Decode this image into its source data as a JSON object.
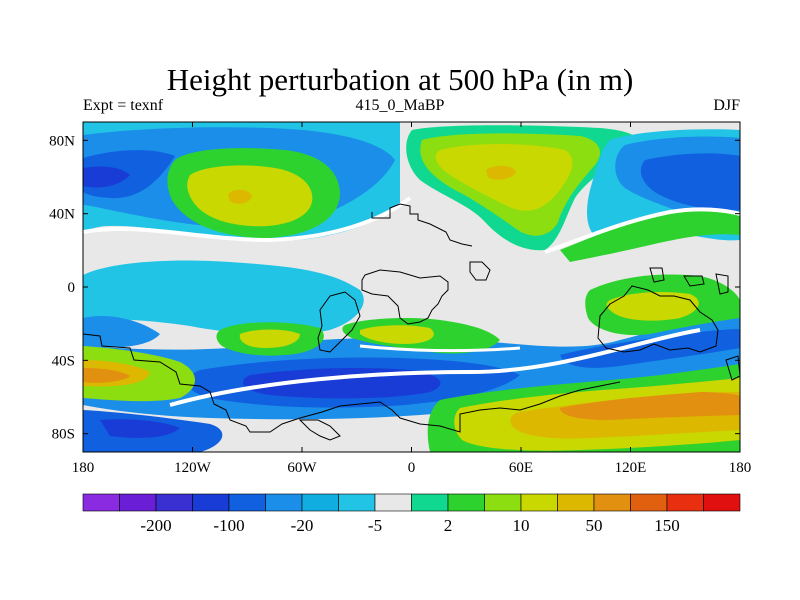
{
  "title": "Height perturbation at 500 hPa (in m)",
  "subtitle_left": "Expt = texnf",
  "subtitle_center": "415_0_MaBP",
  "subtitle_right": "DJF",
  "y_ticks": [
    {
      "lat": 80,
      "label": "80N"
    },
    {
      "lat": 40,
      "label": "40N"
    },
    {
      "lat": 0,
      "label": "0"
    },
    {
      "lat": -40,
      "label": "40S"
    },
    {
      "lat": -80,
      "label": "80S"
    }
  ],
  "x_ticks": [
    {
      "lon": -180,
      "label": "180"
    },
    {
      "lon": -120,
      "label": "120W"
    },
    {
      "lon": -60,
      "label": "60W"
    },
    {
      "lon": 0,
      "label": "0"
    },
    {
      "lon": 60,
      "label": "60E"
    },
    {
      "lon": 120,
      "label": "120E"
    },
    {
      "lon": 180,
      "label": "180"
    }
  ],
  "colorbar": {
    "colors": [
      "#8a2be2",
      "#6a1fd6",
      "#3a2fd0",
      "#1a3cd6",
      "#1060e0",
      "#1a8ee8",
      "#10aee0",
      "#22c4e6",
      "#e8e8e8",
      "#10d890",
      "#2ed22e",
      "#8cde10",
      "#c8d800",
      "#dcb800",
      "#e29010",
      "#e06010",
      "#e83010",
      "#e01010"
    ],
    "labels": [
      {
        "after_index": 1,
        "label": "-200"
      },
      {
        "after_index": 3,
        "label": "-100"
      },
      {
        "after_index": 5,
        "label": "-20"
      },
      {
        "after_index": 7,
        "label": "-5"
      },
      {
        "after_index": 9,
        "label": "2"
      },
      {
        "after_index": 11,
        "label": "10"
      },
      {
        "after_index": 13,
        "label": "50"
      },
      {
        "after_index": 15,
        "label": "150"
      }
    ]
  },
  "palette": {
    "neutral": "#e8e8e8",
    "blue_deep": "#1a3cd6",
    "blue": "#1060e0",
    "blue_light": "#1a8ee8",
    "cyan": "#10aee0",
    "cyan_light": "#22c4e6",
    "teal": "#10d890",
    "green": "#2ed22e",
    "lime": "#8cde10",
    "yellow": "#c8d800",
    "gold": "#dcb800",
    "orange": "#e29010",
    "coastline": "#000000"
  }
}
